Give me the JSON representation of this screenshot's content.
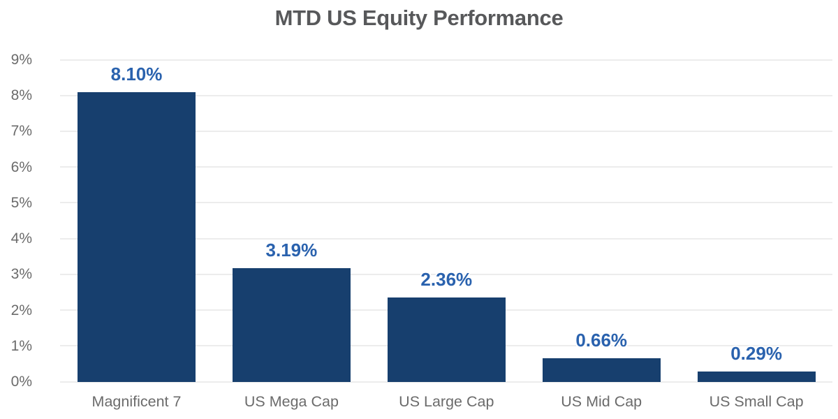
{
  "chart_data": {
    "type": "bar",
    "title": "MTD US Equity Performance",
    "categories": [
      "Magnificent 7",
      "US Mega Cap",
      "US Large Cap",
      "US Mid Cap",
      "US Small Cap"
    ],
    "values": [
      8.1,
      3.19,
      2.36,
      0.66,
      0.29
    ],
    "data_labels": [
      "8.10%",
      "3.19%",
      "2.36%",
      "0.66%",
      "0.29%"
    ],
    "y_tick_labels": [
      "0%",
      "1%",
      "2%",
      "3%",
      "4%",
      "5%",
      "6%",
      "7%",
      "8%",
      "9%"
    ],
    "ylim": [
      0,
      9
    ],
    "xlabel": "",
    "ylabel": "",
    "grid": "horizontal",
    "legend": "none",
    "colors": {
      "bar": "#173F6E",
      "data_label": "#2A62AE",
      "title": "#57585A",
      "axis_text": "#6B6B6B",
      "gridline": "#ECECEC",
      "background": "#FFFFFF"
    }
  }
}
